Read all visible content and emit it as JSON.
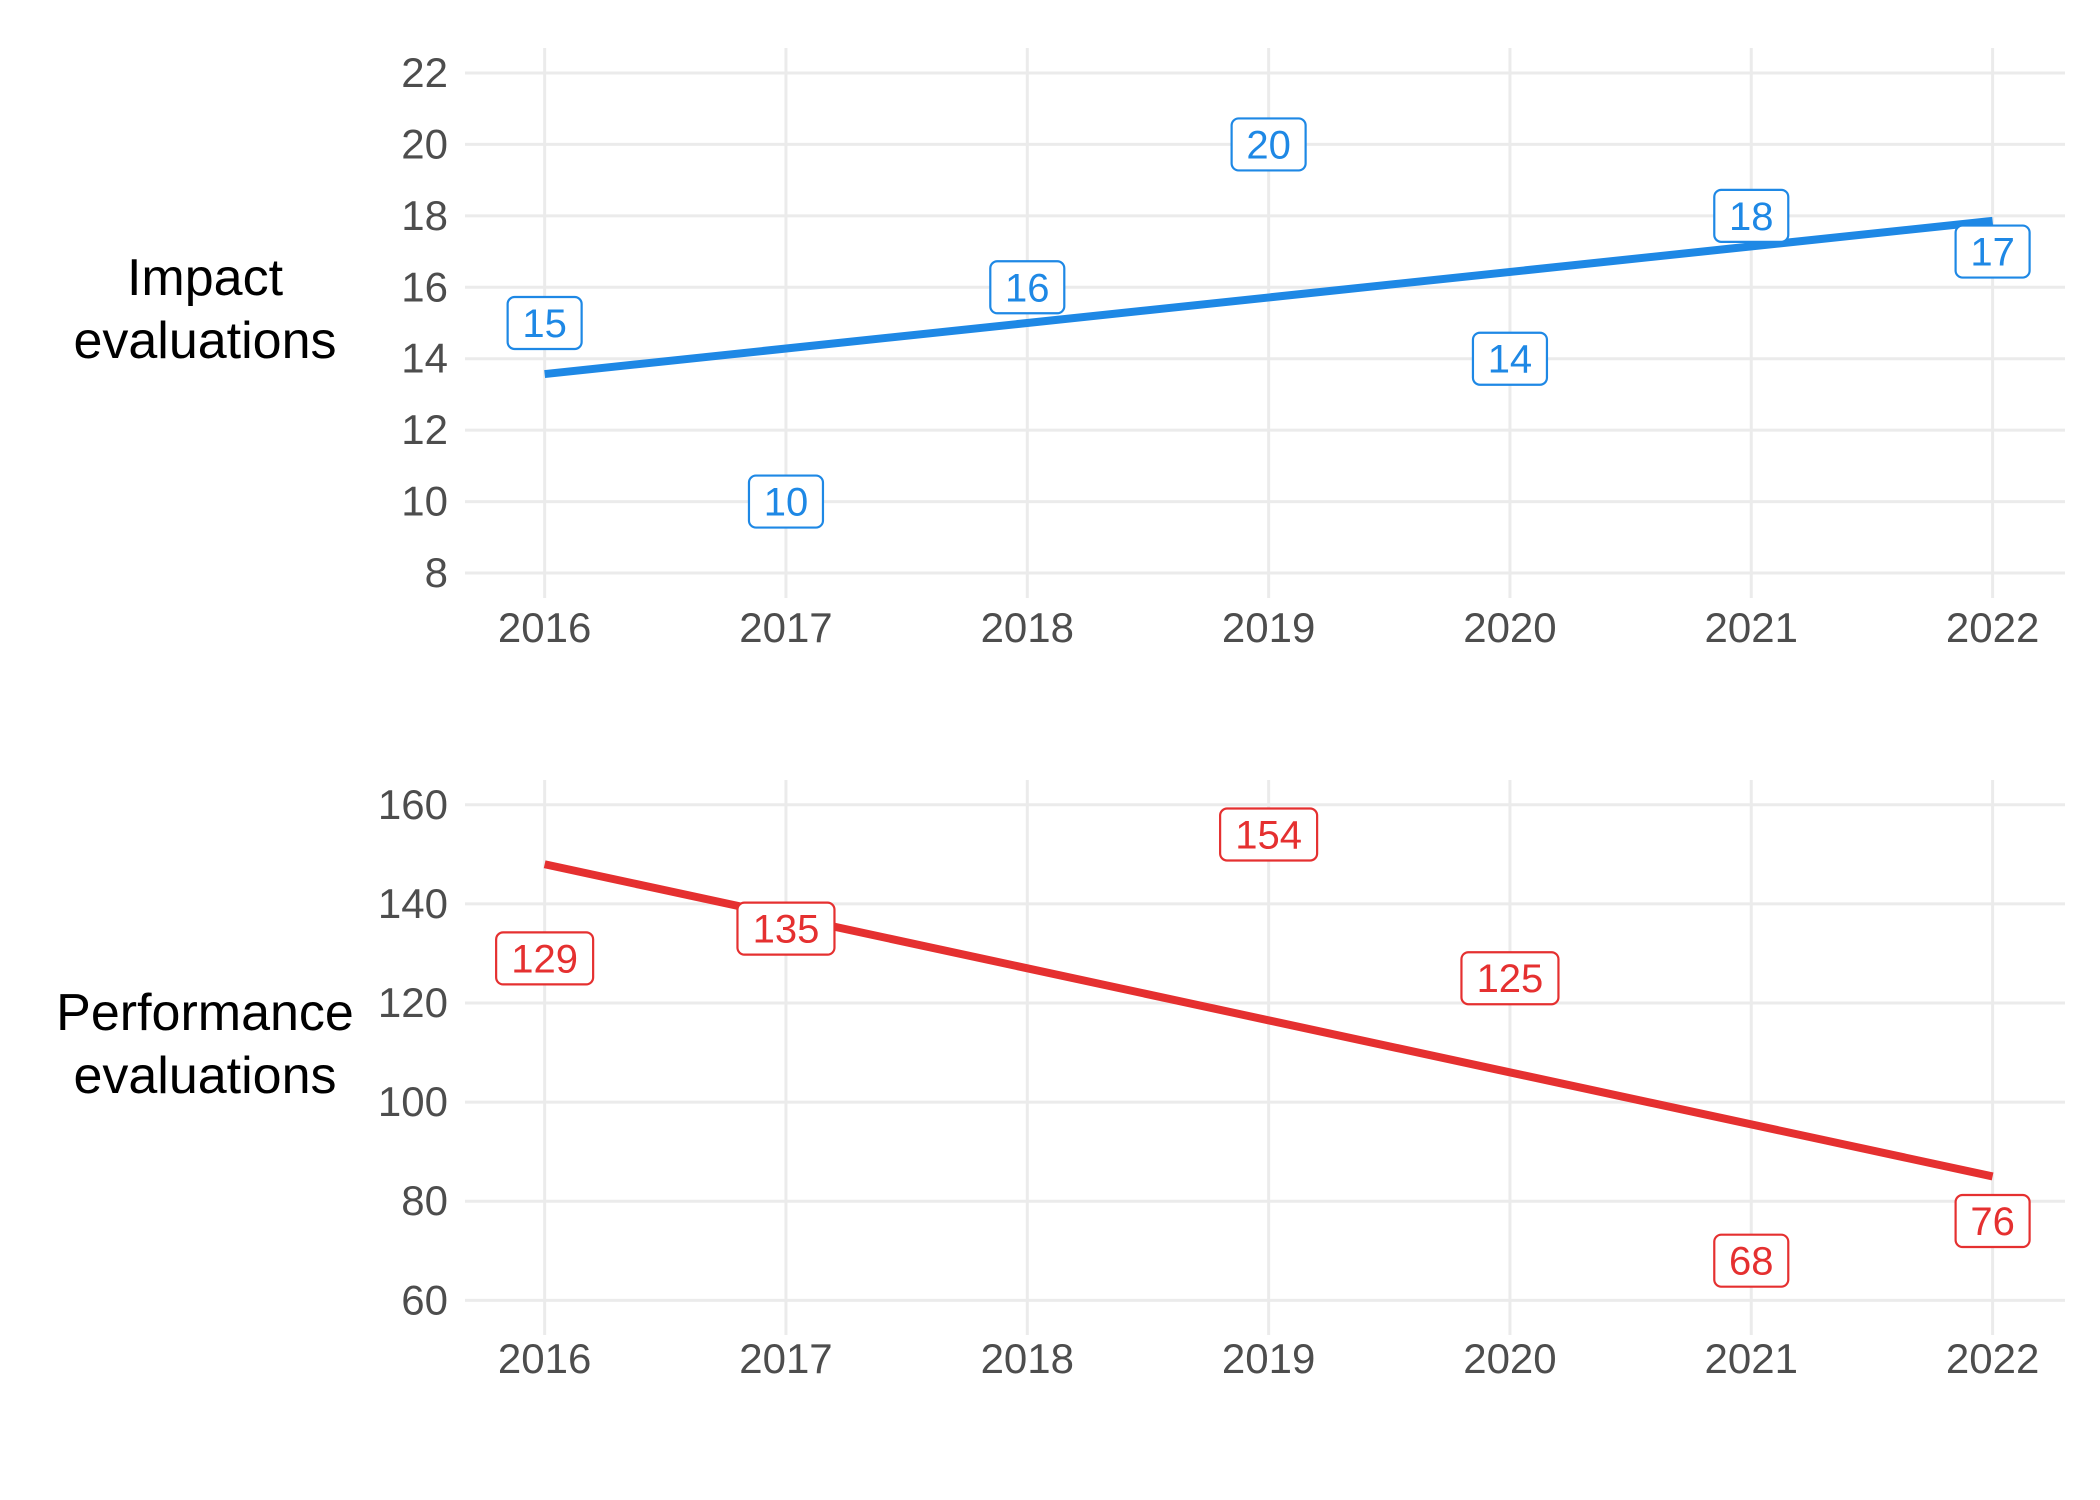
{
  "chart_data": [
    {
      "type": "line",
      "row_label": [
        "Impact",
        "evaluations"
      ],
      "x": [
        2016,
        2017,
        2018,
        2019,
        2020,
        2021,
        2022
      ],
      "values": [
        15,
        10,
        16,
        20,
        14,
        18,
        17
      ],
      "trend": [
        13.57,
        17.86
      ],
      "ylim": [
        7.3,
        22.7
      ],
      "yticks": [
        8,
        10,
        12,
        14,
        16,
        18,
        20,
        22
      ],
      "color": "#1e88e5",
      "grid": true
    },
    {
      "type": "line",
      "row_label": [
        "Performance",
        "evaluations"
      ],
      "x": [
        2016,
        2017,
        2018,
        2019,
        2020,
        2021,
        2022
      ],
      "values": [
        129,
        135,
        null,
        154,
        125,
        68,
        76
      ],
      "trend": [
        148,
        85
      ],
      "ylim": [
        53,
        165
      ],
      "yticks": [
        60,
        80,
        100,
        120,
        140,
        160
      ],
      "color": "#e53030",
      "grid": true
    }
  ]
}
